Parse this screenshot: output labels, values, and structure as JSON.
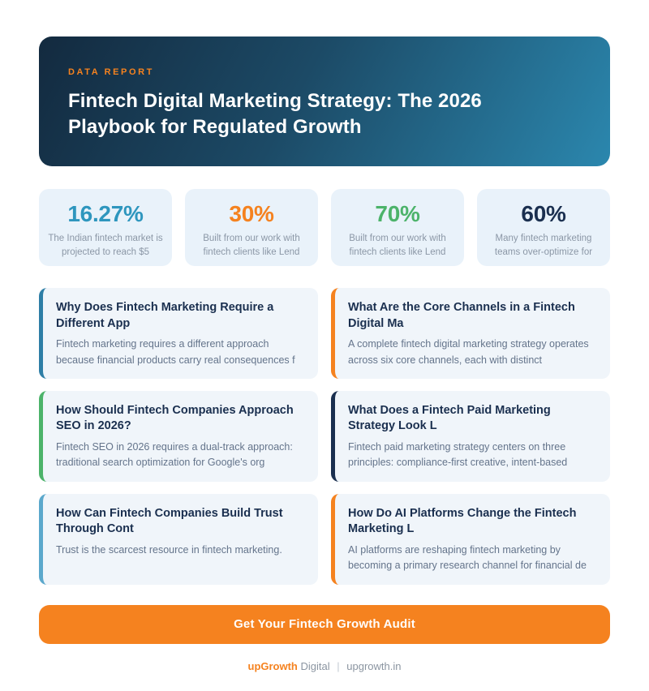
{
  "header": {
    "eyebrow": "DATA REPORT",
    "title": "Fintech Digital Marketing Strategy: The 2026 Playbook for Regulated Growth",
    "gradient_start": "#132A3F",
    "gradient_end": "#2B87AE",
    "eyebrow_color": "#F5821F"
  },
  "stats": [
    {
      "value": "16.27%",
      "caption": "The Indian fintech market is projected to reach $5",
      "color": "#2E96BE"
    },
    {
      "value": "30%",
      "caption": "Built from our work with fintech clients like Lend",
      "color": "#F5821F"
    },
    {
      "value": "70%",
      "caption": "Built from our work with fintech clients like Lend",
      "color": "#4CB36A"
    },
    {
      "value": "60%",
      "caption": "Many fintech marketing teams over-optimize for",
      "color": "#1A2F4F"
    }
  ],
  "cards": [
    {
      "title": "Why Does Fintech Marketing Require a Different App",
      "body": "Fintech marketing requires a different approach because financial products carry real consequences f",
      "accent": "#2E7EA6"
    },
    {
      "title": "What Are the Core Channels in a Fintech Digital Ma",
      "body": "A complete fintech digital marketing strategy operates across six core channels, each with distinct",
      "accent": "#F5821F"
    },
    {
      "title": "How Should Fintech Companies Approach SEO in 2026?",
      "body": "Fintech SEO in 2026 requires a dual-track approach: traditional search optimization for Google's org",
      "accent": "#4CB36A"
    },
    {
      "title": "What Does a Fintech Paid Marketing Strategy Look L",
      "body": "Fintech paid marketing strategy centers on three principles: compliance-first creative, intent-based",
      "accent": "#1A2F4F"
    },
    {
      "title": "How Can Fintech Companies Build Trust Through Cont",
      "body": "Trust is the scarcest resource in fintech marketing.",
      "accent": "#5BA8CC"
    },
    {
      "title": "How Do AI Platforms Change the Fintech Marketing L",
      "body": "AI platforms are reshaping fintech marketing by becoming a primary research channel for financial de",
      "accent": "#F5821F"
    }
  ],
  "cta": {
    "label": "Get Your Fintech Growth Audit",
    "color": "#F5821F"
  },
  "footer": {
    "brand": "upGrowth",
    "brand_suffix": "Digital",
    "separator": "|",
    "site": "upgrowth.in"
  }
}
